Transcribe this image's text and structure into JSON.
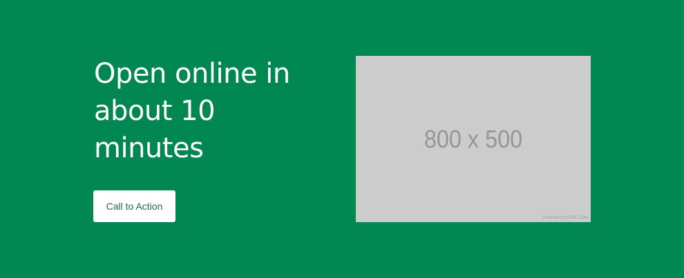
{
  "hero": {
    "headline": "Open online in about 10 minutes",
    "cta_label": "Call to Action"
  },
  "image_placeholder": {
    "label": "800 x 500",
    "credit": "Powered by HTML.COM"
  },
  "colors": {
    "background": "#008752",
    "button_background": "#ffffff",
    "button_text": "#1f6b49",
    "placeholder_background": "#cccccc",
    "placeholder_text": "#969696"
  }
}
